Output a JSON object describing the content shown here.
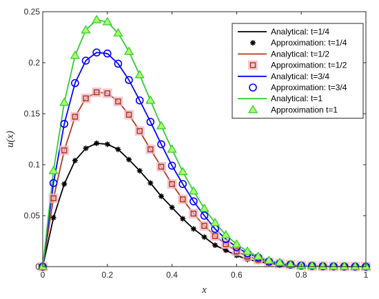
{
  "chart_data": {
    "type": "line",
    "xlabel": "x",
    "ylabel": "u(x)",
    "xlim": [
      0,
      1
    ],
    "ylim": [
      0,
      0.25
    ],
    "x_ticks": [
      "0",
      "0.2",
      "0.4",
      "0.6",
      "0.8",
      "1"
    ],
    "y_ticks": [
      "0",
      "0.05",
      "0.1",
      "0.15",
      "0.2",
      "0.25"
    ],
    "grid": false,
    "legend_position": "top-right",
    "x": [
      0,
      0.0333,
      0.0667,
      0.1,
      0.1333,
      0.1667,
      0.2,
      0.2333,
      0.2667,
      0.3,
      0.3333,
      0.3667,
      0.4,
      0.4333,
      0.4667,
      0.5,
      0.5333,
      0.5667,
      0.6,
      0.6333,
      0.6667,
      0.7,
      0.7333,
      0.7667,
      0.8,
      0.8333,
      0.8667,
      0.9,
      0.9333,
      0.9667,
      1.0
    ],
    "series": [
      {
        "name": "Analytical: t=1/4",
        "kind": "line",
        "color": "#000000",
        "values": [
          0,
          0.048,
          0.081,
          0.104,
          0.116,
          0.121,
          0.12,
          0.115,
          0.105,
          0.094,
          0.082,
          0.069,
          0.058,
          0.047,
          0.037,
          0.029,
          0.021,
          0.016,
          0.011,
          0.007,
          0.005,
          0.003,
          0.002,
          0.001,
          0.0007,
          0.0004,
          0.0002,
          0.0001,
          5e-05,
          2e-05,
          0
        ]
      },
      {
        "name": "Approximation: t=1/4",
        "kind": "markers",
        "marker": "asterisk",
        "color": "#000000",
        "values": [
          0,
          0.048,
          0.081,
          0.104,
          0.116,
          0.121,
          0.12,
          0.115,
          0.105,
          0.094,
          0.082,
          0.069,
          0.058,
          0.047,
          0.037,
          0.029,
          0.021,
          0.016,
          0.011,
          0.007,
          0.005,
          0.003,
          0.002,
          0.001,
          0.0007,
          0.0004,
          0.0002,
          0.0001,
          5e-05,
          2e-05,
          0
        ]
      },
      {
        "name": "Analytical: t=1/2",
        "kind": "line",
        "color": "#b03a1f",
        "values": [
          0,
          0.067,
          0.114,
          0.147,
          0.165,
          0.171,
          0.17,
          0.162,
          0.149,
          0.133,
          0.115,
          0.098,
          0.081,
          0.066,
          0.052,
          0.04,
          0.03,
          0.022,
          0.015,
          0.01,
          0.007,
          0.004,
          0.003,
          0.002,
          0.001,
          0.0005,
          0.0003,
          0.0001,
          7e-05,
          3e-05,
          0
        ]
      },
      {
        "name": "Approximation: t=1/2",
        "kind": "markers",
        "marker": "square",
        "color": "#b03a1f",
        "halo": "#f2b8c6",
        "values": [
          0,
          0.067,
          0.114,
          0.147,
          0.165,
          0.171,
          0.17,
          0.162,
          0.149,
          0.133,
          0.115,
          0.098,
          0.081,
          0.066,
          0.052,
          0.04,
          0.03,
          0.022,
          0.015,
          0.01,
          0.007,
          0.004,
          0.003,
          0.002,
          0.001,
          0.0005,
          0.0003,
          0.0001,
          7e-05,
          3e-05,
          0
        ]
      },
      {
        "name": "Analytical: t=3/4",
        "kind": "line",
        "color": "#0000ff",
        "values": [
          0,
          0.082,
          0.14,
          0.18,
          0.202,
          0.21,
          0.209,
          0.199,
          0.183,
          0.163,
          0.142,
          0.12,
          0.099,
          0.081,
          0.064,
          0.05,
          0.037,
          0.027,
          0.019,
          0.013,
          0.009,
          0.005,
          0.003,
          0.002,
          0.001,
          0.0007,
          0.0003,
          0.0002,
          8e-05,
          3e-05,
          0
        ]
      },
      {
        "name": "Approximation: t=3/4",
        "kind": "markers",
        "marker": "circle",
        "color": "#0000ff",
        "values": [
          0,
          0.082,
          0.14,
          0.18,
          0.202,
          0.21,
          0.209,
          0.199,
          0.183,
          0.163,
          0.142,
          0.12,
          0.099,
          0.081,
          0.064,
          0.05,
          0.037,
          0.027,
          0.019,
          0.013,
          0.009,
          0.005,
          0.003,
          0.002,
          0.001,
          0.0007,
          0.0003,
          0.0002,
          8e-05,
          3e-05,
          0
        ]
      },
      {
        "name": "Analytical: t=1",
        "kind": "line",
        "color": "#33cc33",
        "values": [
          0,
          0.094,
          0.161,
          0.207,
          0.232,
          0.242,
          0.24,
          0.229,
          0.211,
          0.188,
          0.163,
          0.138,
          0.115,
          0.093,
          0.074,
          0.057,
          0.043,
          0.031,
          0.022,
          0.015,
          0.01,
          0.006,
          0.004,
          0.002,
          0.001,
          0.0008,
          0.0004,
          0.0002,
          0.0001,
          4e-05,
          0
        ]
      },
      {
        "name": "Approximation t=1",
        "kind": "markers",
        "marker": "triangle",
        "color": "#33cc33",
        "fill": "#aaff66",
        "values": [
          0,
          0.094,
          0.161,
          0.207,
          0.232,
          0.242,
          0.24,
          0.229,
          0.211,
          0.188,
          0.163,
          0.138,
          0.115,
          0.093,
          0.074,
          0.057,
          0.043,
          0.031,
          0.022,
          0.015,
          0.01,
          0.006,
          0.004,
          0.002,
          0.001,
          0.0008,
          0.0004,
          0.0002,
          0.0001,
          4e-05,
          0
        ]
      }
    ]
  }
}
